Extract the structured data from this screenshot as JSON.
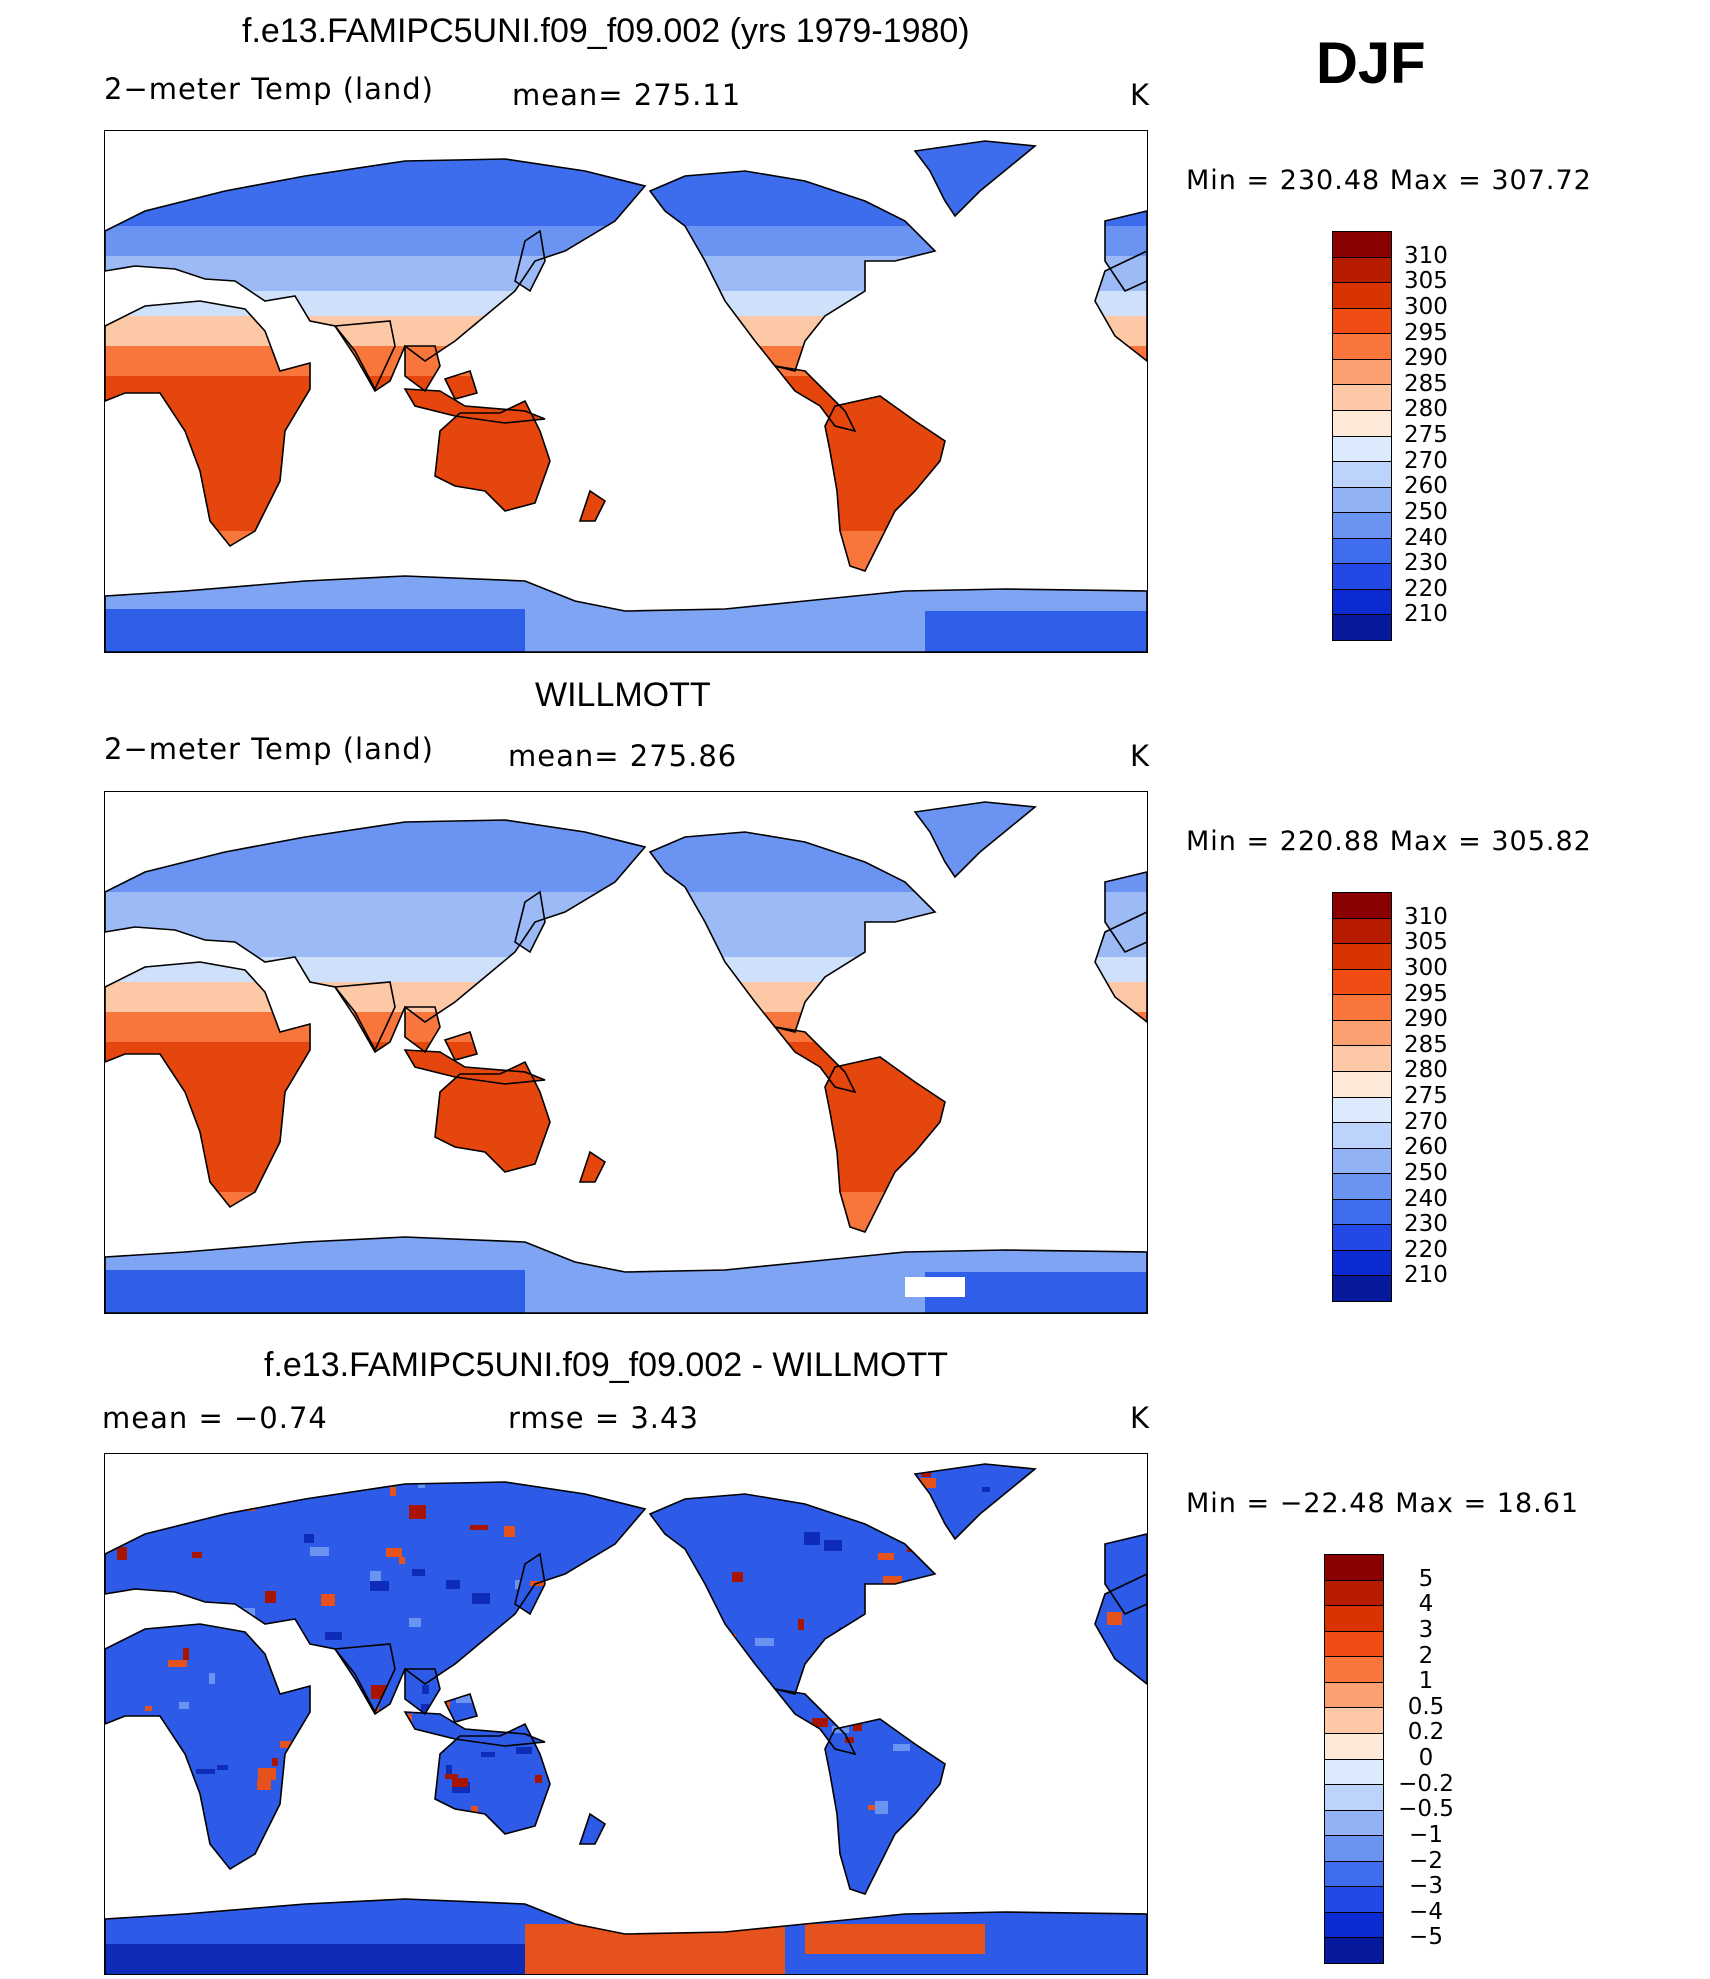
{
  "season": "DJF",
  "panels": [
    {
      "title": "f.e13.FAMIPC5UNI.f09_f09.002 (yrs 1979-1980)",
      "left_label": "2−meter Temp (land)",
      "center_label": "mean= 275.11",
      "units": "K",
      "minmax": "Min = 230.48 Max = 307.72",
      "map_style": "model"
    },
    {
      "title": "WILLMOTT",
      "left_label": "2−meter Temp (land)",
      "center_label": "mean= 275.86",
      "units": "K",
      "minmax": "Min = 220.88 Max = 305.82",
      "map_style": "obs"
    },
    {
      "title": "f.e13.FAMIPC5UNI.f09_f09.002 - WILLMOTT",
      "left_label": "mean =    −0.74",
      "center_label": "rmse =     3.43",
      "units": "K",
      "minmax": "Min = −22.48 Max =  18.61",
      "map_style": "diff"
    }
  ],
  "colorbars": {
    "temp": {
      "labels": [
        "310",
        "305",
        "300",
        "295",
        "290",
        "285",
        "280",
        "275",
        "270",
        "260",
        "250",
        "240",
        "230",
        "220",
        "210"
      ],
      "colors": [
        "#8b0000",
        "#b71c00",
        "#d93300",
        "#f04c14",
        "#f8753c",
        "#fba071",
        "#fdc8a6",
        "#fee9d9",
        "#dbeafc",
        "#bcd3fb",
        "#92b2f6",
        "#6b93f1",
        "#3f6ded",
        "#2249e6",
        "#0c2ad2",
        "#071a9e"
      ]
    },
    "diff": {
      "labels": [
        "5",
        "4",
        "3",
        "2",
        "1",
        "0.5",
        "0.2",
        "0",
        "−0.2",
        "−0.5",
        "−1",
        "−2",
        "−3",
        "−4",
        "−5"
      ],
      "colors": [
        "#8b0000",
        "#b71c00",
        "#d93300",
        "#f04c14",
        "#f8753c",
        "#fba071",
        "#fdc8a6",
        "#fee9d9",
        "#dbeafc",
        "#bcd3fb",
        "#92b2f6",
        "#6b93f1",
        "#3f6ded",
        "#2249e6",
        "#0c2ad2",
        "#071a9e"
      ]
    }
  },
  "map_colors": {
    "ocean": "#ffffff",
    "coast": "#000000",
    "arctic": "#3d6cec",
    "cold": "#6b93f1",
    "cool": "#9cbaf6",
    "mild": "#cfe0fb",
    "temperate": "#fdc8a6",
    "warm": "#f8753c",
    "hot": "#e4460e",
    "hotter": "#d43300",
    "antarctic_dark": "#2f5fe8",
    "antarctic_light": "#7ea4f3",
    "diff_red": "#e6521c",
    "diff_darkred": "#a71500",
    "diff_blue": "#2d5ae6",
    "diff_navy": "#0f2cb8"
  }
}
